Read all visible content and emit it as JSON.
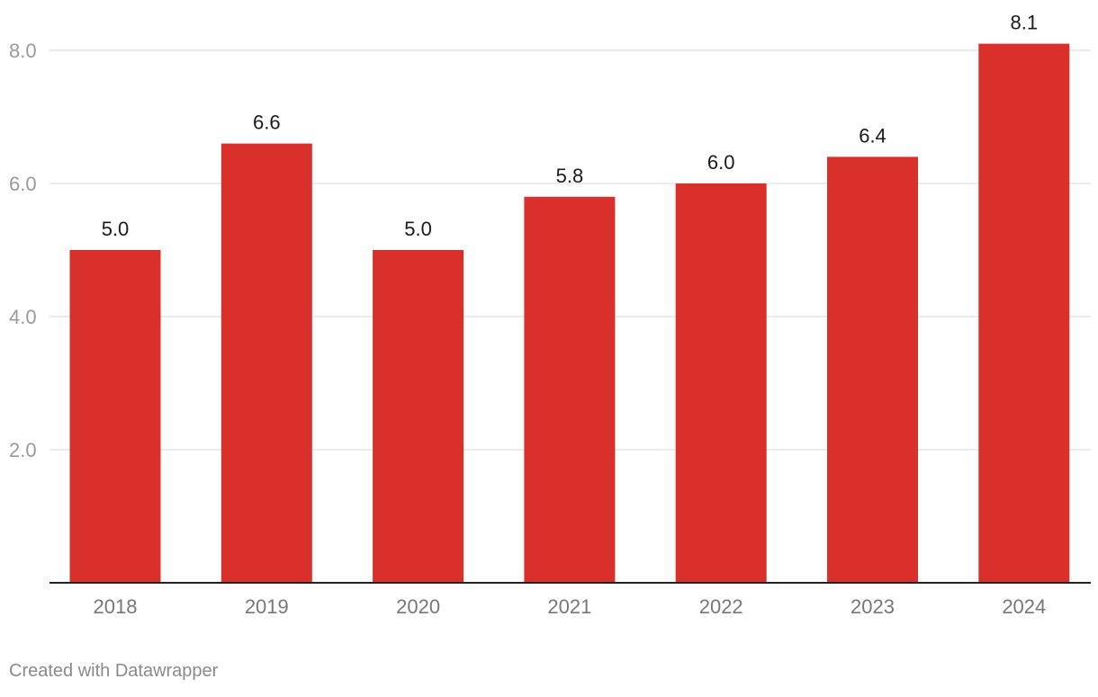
{
  "chart_data": {
    "type": "bar",
    "categories": [
      "2018",
      "2019",
      "2020",
      "2021",
      "2022",
      "2023",
      "2024"
    ],
    "values": [
      5.0,
      6.6,
      5.0,
      5.8,
      6.0,
      6.4,
      8.1
    ],
    "value_labels": [
      "5.0",
      "6.6",
      "5.0",
      "5.8",
      "6.0",
      "6.4",
      "8.1"
    ],
    "yticks": [
      2.0,
      4.0,
      6.0,
      8.0
    ],
    "ytick_labels": [
      "2.0",
      "4.0",
      "6.0",
      "8.0"
    ],
    "ylim": [
      0,
      8.1
    ],
    "title": "",
    "xlabel": "",
    "ylabel": "",
    "grid": true,
    "bar_color": "#d9302b",
    "grid_color": "#e0e0e0",
    "axis_color": "#222222",
    "tick_label_color": "#9a9a9a",
    "category_label_color": "#777777",
    "value_label_color": "#1a1a1a"
  },
  "footer": {
    "credit": "Created with Datawrapper"
  }
}
